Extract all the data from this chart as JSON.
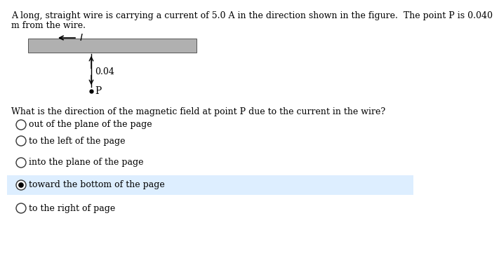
{
  "title_line1": "A long, straight wire is carrying a current of 5.0 A in the direction shown in the figure.  The point P is 0.040",
  "title_line2": "m from the wire.",
  "question_text": "What is the direction of the magnetic field at point P due to the current in the wire?",
  "options": [
    "out of the plane of the page",
    "to the left of the page",
    "into the plane of the page",
    "toward the bottom of the page",
    "to the right of page"
  ],
  "selected_index": 3,
  "background_color": "#ffffff",
  "selected_bg_color": "#ddeeff",
  "font_size_body": 9,
  "font_size_options": 9,
  "wire_color": "#b0b0b0",
  "wire_edge_color": "#555555"
}
